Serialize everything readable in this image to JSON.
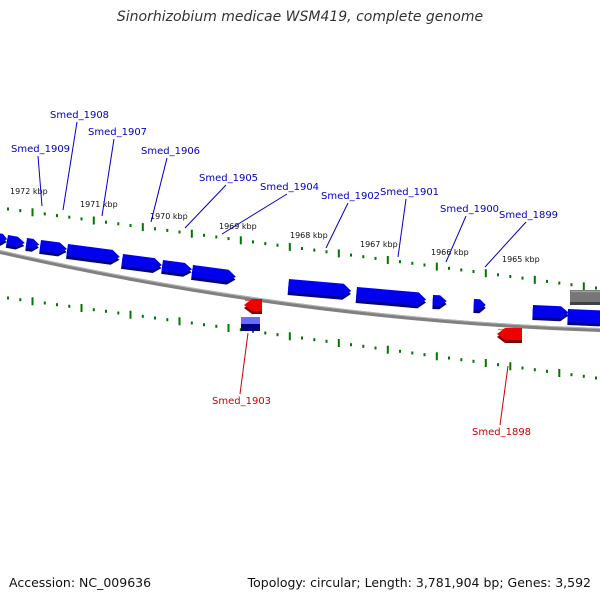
{
  "title": "Sinorhizobium medicae WSM419, complete genome",
  "footer": {
    "accession": "Accession: NC_009636",
    "summary": "Topology: circular; Length: 3,781,904 bp; Genes: 3,592"
  },
  "colors": {
    "forward_gene": "#0000ee",
    "reverse_gene": "#ee0000",
    "backbone": "#808080",
    "ticks": "#007700",
    "other_feature": "#777777",
    "rna_feature": "#000080"
  },
  "kbp_labels": [
    "1972 kbp",
    "1971 kbp",
    "1970 kbp",
    "1969 kbp",
    "1968 kbp",
    "1967 kbp",
    "1966 kbp",
    "1965 kbp"
  ],
  "forward_gene_labels": [
    "Smed_1909",
    "Smed_1908",
    "Smed_1907",
    "Smed_1906",
    "Smed_1905",
    "Smed_1904",
    "Smed_1902",
    "Smed_1901",
    "Smed_1900",
    "Smed_1899"
  ],
  "reverse_gene_labels": [
    "Smed_1903",
    "Smed_1898"
  ]
}
